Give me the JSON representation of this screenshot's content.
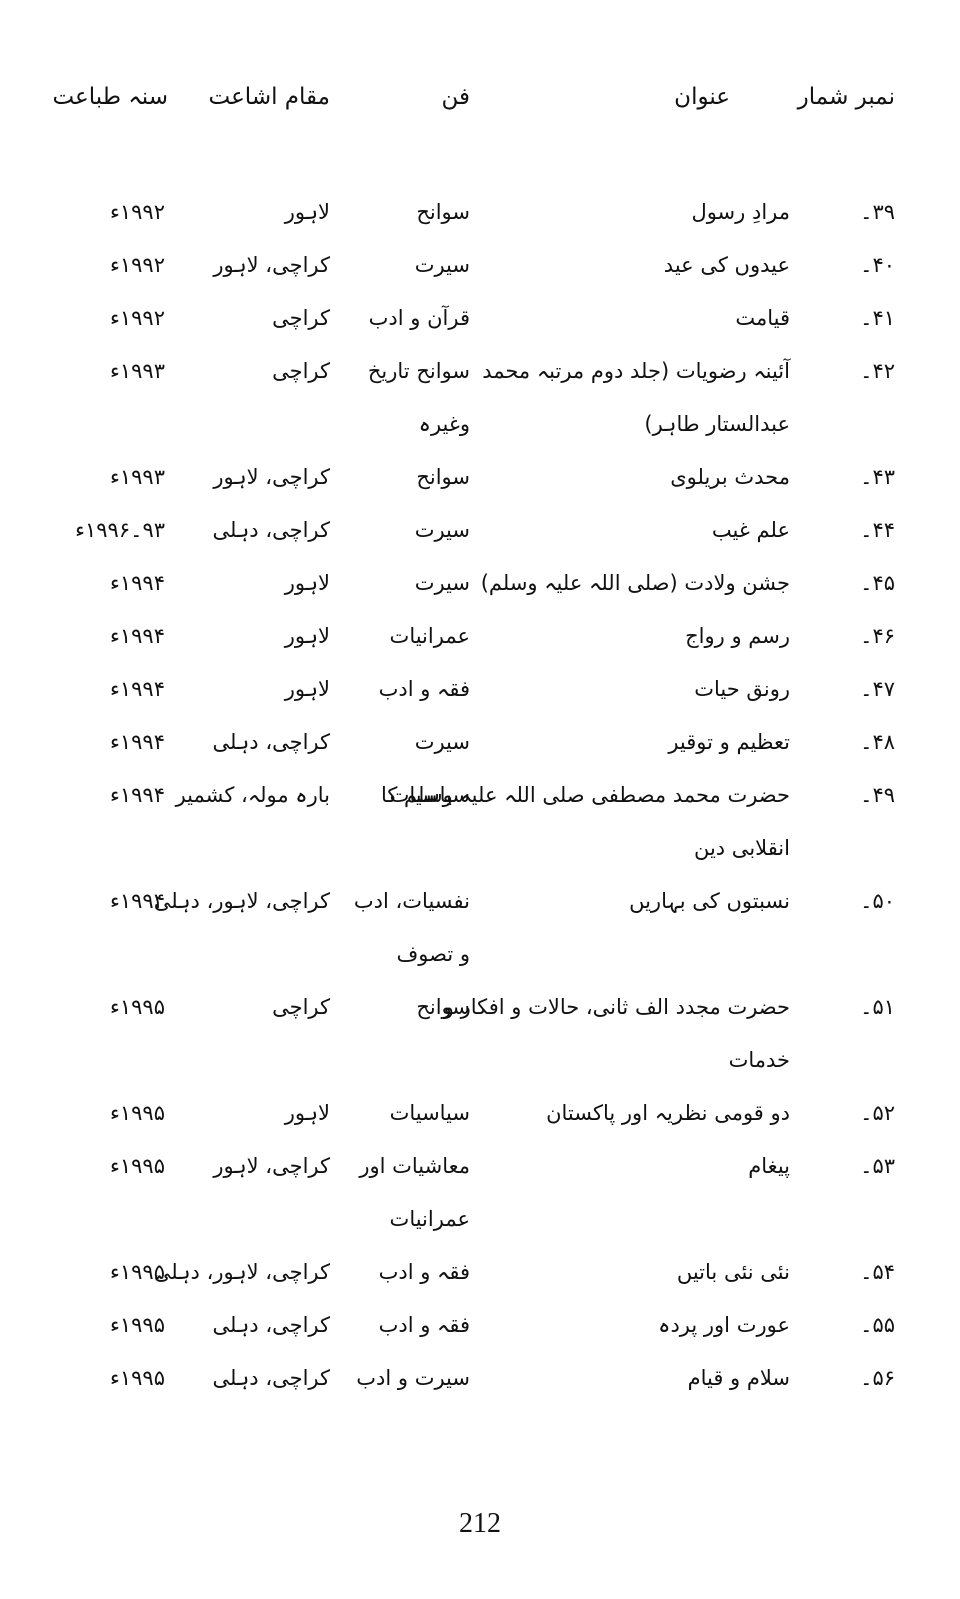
{
  "header": {
    "number": "نمبر شمار",
    "title": "عنوان",
    "genre": "فن",
    "place": "مقام اشاعت",
    "year": "سنہ طباعت"
  },
  "rows": [
    {
      "number": "۳۹۔",
      "title": [
        "مرادِ رسول"
      ],
      "genre": [
        "سوانح"
      ],
      "place": "لاہور",
      "year": "۱۹۹۲ء"
    },
    {
      "number": "۴۰۔",
      "title": [
        "عیدوں کی عید"
      ],
      "genre": [
        "سیرت"
      ],
      "place": "کراچی، لاہور",
      "year": "۱۹۹۲ء"
    },
    {
      "number": "۴۱۔",
      "title": [
        "قیامت"
      ],
      "genre": [
        "قرآن و ادب"
      ],
      "place": "کراچی",
      "year": "۱۹۹۲ء"
    },
    {
      "number": "۴۲۔",
      "title": [
        "آئینہ رضویات (جلد دوم مرتبہ محمد",
        "عبدالستار طاہر)"
      ],
      "genre": [
        "سوانح تاریخ",
        "وغیرہ"
      ],
      "place": "کراچی",
      "year": "۱۹۹۳ء"
    },
    {
      "number": "۴۳۔",
      "title": [
        "محدث بریلوی"
      ],
      "genre": [
        "سوانح"
      ],
      "place": "کراچی، لاہور",
      "year": "۱۹۹۳ء"
    },
    {
      "number": "۴۴۔",
      "title": [
        "علم غیب"
      ],
      "genre": [
        "سیرت"
      ],
      "place": "کراچی، دہلی",
      "year": "۹۳۔۱۹۹۶ء"
    },
    {
      "number": "۴۵۔",
      "title": [
        "جشن ولادت (صلی اللہ علیہ وسلم)"
      ],
      "genre": [
        "سیرت"
      ],
      "place": "لاہور",
      "year": "۱۹۹۴ء"
    },
    {
      "number": "۴۶۔",
      "title": [
        "رسم و رواج"
      ],
      "genre": [
        "عمرانیات"
      ],
      "place": "لاہور",
      "year": "۱۹۹۴ء"
    },
    {
      "number": "۴۷۔",
      "title": [
        "رونق حیات"
      ],
      "genre": [
        "فقہ و ادب"
      ],
      "place": "لاہور",
      "year": "۱۹۹۴ء"
    },
    {
      "number": "۴۸۔",
      "title": [
        "تعظیم و توقیر"
      ],
      "genre": [
        "سیرت"
      ],
      "place": "کراچی، دہلی",
      "year": "۱۹۹۴ء"
    },
    {
      "number": "۴۹۔",
      "title": [
        "حضرت محمد مصطفی صلی اللہ علیہ وسلم کا",
        "انقلابی دین"
      ],
      "genre": [
        "سیاسیات"
      ],
      "place": "بارہ مولہ، کشمیر",
      "year": "۱۹۹۴ء"
    },
    {
      "number": "۵۰۔",
      "title": [
        "نسبتوں کی بہاریں"
      ],
      "genre": [
        "نفسیات، ادب",
        "و تصوف"
      ],
      "place": "کراچی، لاہور، دہلی",
      "year": "۱۹۹۴ء"
    },
    {
      "number": "۵۱۔",
      "title": [
        "حضرت مجدد الف ثانی، حالات و افکار و",
        "خدمات"
      ],
      "genre": [
        "سوانح"
      ],
      "place": "کراچی",
      "year": "۱۹۹۵ء"
    },
    {
      "number": "۵۲۔",
      "title": [
        "دو قومی نظریہ اور پاکستان"
      ],
      "genre": [
        "سیاسیات"
      ],
      "place": "لاہور",
      "year": "۱۹۹۵ء"
    },
    {
      "number": "۵۳۔",
      "title": [
        "پیغام"
      ],
      "genre": [
        "معاشیات اور",
        "عمرانیات"
      ],
      "place": "کراچی، لاہور",
      "year": "۱۹۹۵ء"
    },
    {
      "number": "۵۴۔",
      "title": [
        "نئی نئی باتیں"
      ],
      "genre": [
        "فقہ و ادب"
      ],
      "place": "کراچی، لاہور، دہلی",
      "year": "۱۹۹۵ء"
    },
    {
      "number": "۵۵۔",
      "title": [
        "عورت اور پردہ"
      ],
      "genre": [
        "فقہ و ادب"
      ],
      "place": "کراچی، دہلی",
      "year": "۱۹۹۵ء"
    },
    {
      "number": "۵۶۔",
      "title": [
        "سلام و قیام"
      ],
      "genre": [
        "سیرت و ادب"
      ],
      "place": "کراچی، دہلی",
      "year": "۱۹۹۵ء"
    }
  ],
  "page_number": "212"
}
